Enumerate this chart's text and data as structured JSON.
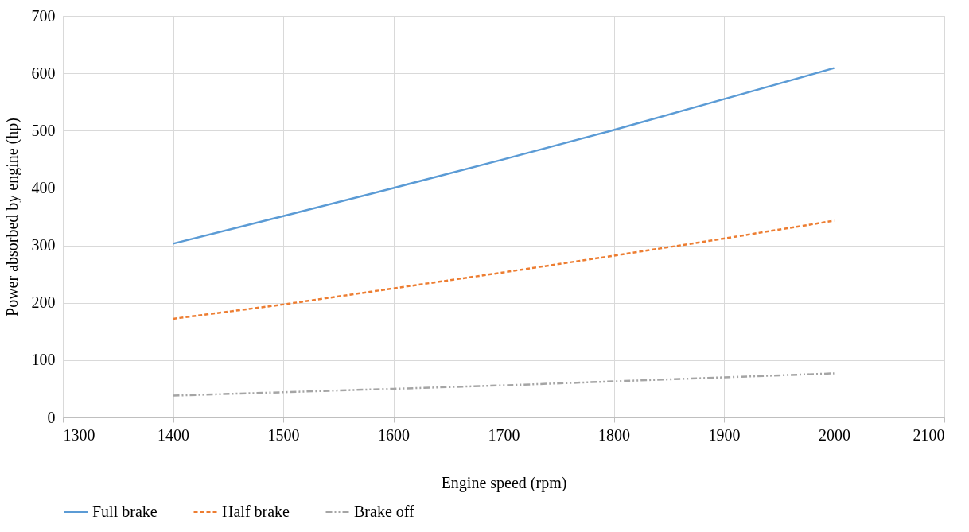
{
  "chart_data": {
    "type": "line",
    "xlabel": "Engine speed (rpm)",
    "ylabel": "Power absorbed by engine (hp)",
    "x": [
      1400,
      1500,
      1600,
      1700,
      1800,
      1900,
      2000
    ],
    "series": [
      {
        "name": "Full brake",
        "color": "#5b9bd5",
        "line_style": "solid",
        "values": [
          303,
          351,
          400,
          450,
          501,
          555,
          609
        ]
      },
      {
        "name": "Half brake",
        "color": "#ed7d31",
        "line_style": "dashed",
        "values": [
          172,
          197,
          225,
          253,
          282,
          312,
          343
        ]
      },
      {
        "name": "Brake off",
        "color": "#a5a5a5",
        "line_style": "dashdot",
        "values": [
          38,
          44,
          50,
          56,
          63,
          70,
          77
        ]
      }
    ],
    "xlim": [
      1300,
      2100
    ],
    "xticks": [
      1300,
      1400,
      1500,
      1600,
      1700,
      1800,
      1900,
      2000,
      2100
    ],
    "ylim": [
      0,
      700
    ],
    "yticks": [
      0,
      100,
      200,
      300,
      400,
      500,
      600,
      700
    ],
    "grid": true,
    "legend": "bottom",
    "marker": "none"
  }
}
